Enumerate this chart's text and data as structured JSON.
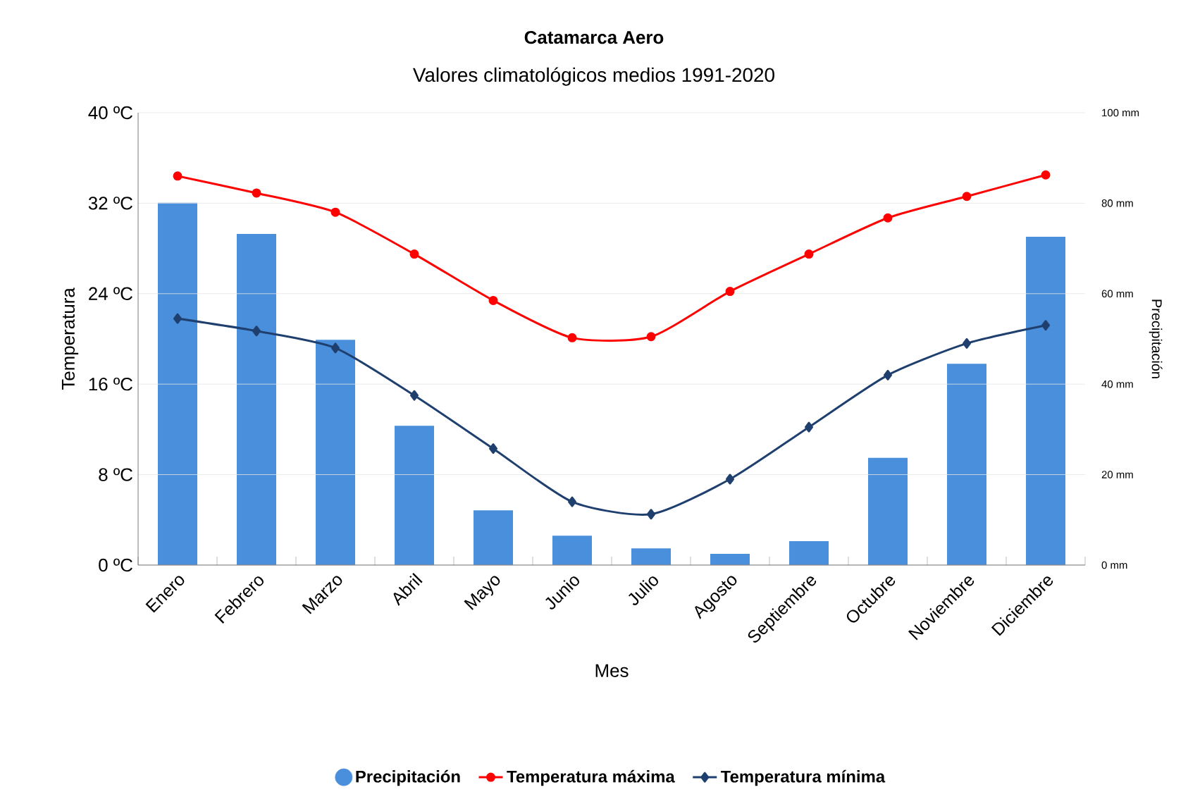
{
  "chart_data": {
    "type": "line",
    "title": "Catamarca Aero",
    "subtitle": "Valores climatológicos medios 1991-2020",
    "xlabel": "Mes",
    "ylabel": "Temperatura",
    "y2label": "Precipitación",
    "categories": [
      "Enero",
      "Febrero",
      "Marzo",
      "Abril",
      "Mayo",
      "Junio",
      "Julio",
      "Agosto",
      "Septiembre",
      "Octubre",
      "Noviembre",
      "Diciembre"
    ],
    "series": [
      {
        "name": "Precipitación",
        "type": "bar",
        "axis": "y2",
        "color": "#4a8fdc",
        "values": [
          80.1,
          73.2,
          49.8,
          30.8,
          12.1,
          6.5,
          3.7,
          2.5,
          5.3,
          23.7,
          44.5,
          72.6
        ]
      },
      {
        "name": "Temperatura máxima",
        "axis": "y",
        "color": "#ff0000",
        "marker": "circle",
        "values": [
          34.4,
          32.9,
          31.2,
          27.5,
          23.4,
          20.1,
          20.2,
          24.2,
          27.5,
          30.7,
          32.6,
          34.5
        ]
      },
      {
        "name": "Temperatura mínima",
        "axis": "y",
        "color": "#1f3f6e",
        "marker": "diamond",
        "values": [
          21.8,
          20.7,
          19.2,
          15.0,
          10.3,
          5.6,
          4.5,
          7.6,
          12.2,
          16.8,
          19.6,
          21.2
        ]
      }
    ],
    "ylim": [
      0,
      40
    ],
    "yticks": [
      {
        "value": 0,
        "label": "0 ºC"
      },
      {
        "value": 8,
        "label": "8 ºC"
      },
      {
        "value": 16,
        "label": "16 ºC"
      },
      {
        "value": 24,
        "label": "24 ºC"
      },
      {
        "value": 32,
        "label": "32 ºC"
      },
      {
        "value": 40,
        "label": "40 ºC"
      }
    ],
    "y2lim": [
      0,
      100
    ],
    "y2ticks": [
      {
        "value": 0,
        "label": "0 mm"
      },
      {
        "value": 20,
        "label": "20 mm"
      },
      {
        "value": 40,
        "label": "40 mm"
      },
      {
        "value": 60,
        "label": "60 mm"
      },
      {
        "value": 80,
        "label": "80 mm"
      },
      {
        "value": 100,
        "label": "100 mm"
      }
    ],
    "grid": "y",
    "legend": "bottom"
  }
}
